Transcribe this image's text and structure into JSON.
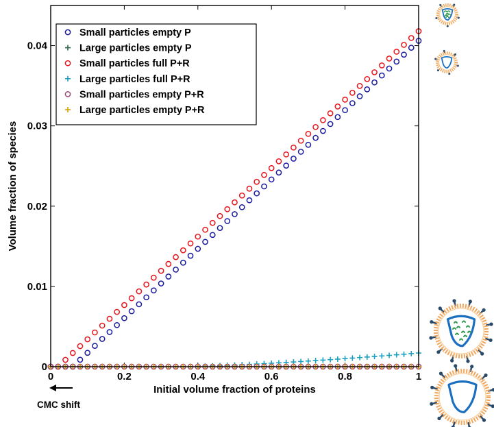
{
  "chart_data": {
    "type": "scatter",
    "xlabel": "Initial volume fraction of proteins",
    "ylabel": "Volume fraction of species",
    "xlim": [
      0,
      1
    ],
    "ylim": [
      0,
      0.045
    ],
    "xticks": [
      0,
      0.2,
      0.4,
      0.6,
      0.8,
      1
    ],
    "xtick_labels": [
      "0",
      "0.2",
      "0.4",
      "0.6",
      "0.8",
      "1"
    ],
    "yticks": [
      0,
      0.01,
      0.02,
      0.03,
      0.04
    ],
    "ytick_labels": [
      "0",
      "0.01",
      "0.02",
      "0.03",
      "0.04"
    ],
    "grid": false,
    "legend_position": "top-left",
    "annotation": "CMC shift",
    "series": [
      {
        "name": "Small particles empty P",
        "marker": "circle",
        "color": "#1a1aa0",
        "x_start": 0,
        "x_end": 1,
        "n_points": 51,
        "threshold_x": 0.06,
        "value_at_x1": 0.0406
      },
      {
        "name": "Large particles empty P",
        "marker": "plus",
        "color": "#2a6a4a",
        "x_start": 0,
        "x_end": 1,
        "n_points": 51,
        "constant_value": 0
      },
      {
        "name": "Small particles full P+R",
        "marker": "circle",
        "color": "#e8141c",
        "x_start": 0,
        "x_end": 1,
        "n_points": 51,
        "threshold_x": 0.02,
        "value_at_x1": 0.0418
      },
      {
        "name": "Large particles full P+R",
        "marker": "plus",
        "color": "#1aa0c0",
        "x_start": 0,
        "x_end": 1,
        "n_points": 51,
        "threshold_x": 0.36,
        "value_at_x1": 0.0017,
        "exponent": 1.4
      },
      {
        "name": "Small particles empty P+R",
        "marker": "circle",
        "color": "#a04a7a",
        "x_start": 0,
        "x_end": 1,
        "n_points": 51,
        "constant_value": 0
      },
      {
        "name": "Large particles empty P+R",
        "marker": "plus",
        "color": "#e0a000",
        "x_start": 0,
        "x_end": 1,
        "n_points": 51,
        "constant_value": 0
      }
    ]
  },
  "side_icons": [
    {
      "name": "small-particle-full-icon",
      "content": "cargo",
      "membrane": "orange-beads",
      "outline": "#1a6fc0",
      "cargo_color": "#2a9a4a",
      "spike_color": "#2a4a6a"
    },
    {
      "name": "small-particle-empty-icon",
      "content": "empty",
      "membrane": "orange-beads",
      "outline": "#1a6fc0",
      "spike_color": "#2a4a6a"
    },
    {
      "name": "large-particle-full-icon",
      "content": "cargo",
      "membrane": "orange-beads",
      "outline": "#1a6fc0",
      "cargo_color": "#2a9a4a",
      "spike_color": "#2a4a6a"
    },
    {
      "name": "large-particle-empty-icon",
      "content": "empty",
      "membrane": "orange-beads",
      "outline": "#1a6fc0",
      "spike_color": "#2a4a6a"
    }
  ]
}
